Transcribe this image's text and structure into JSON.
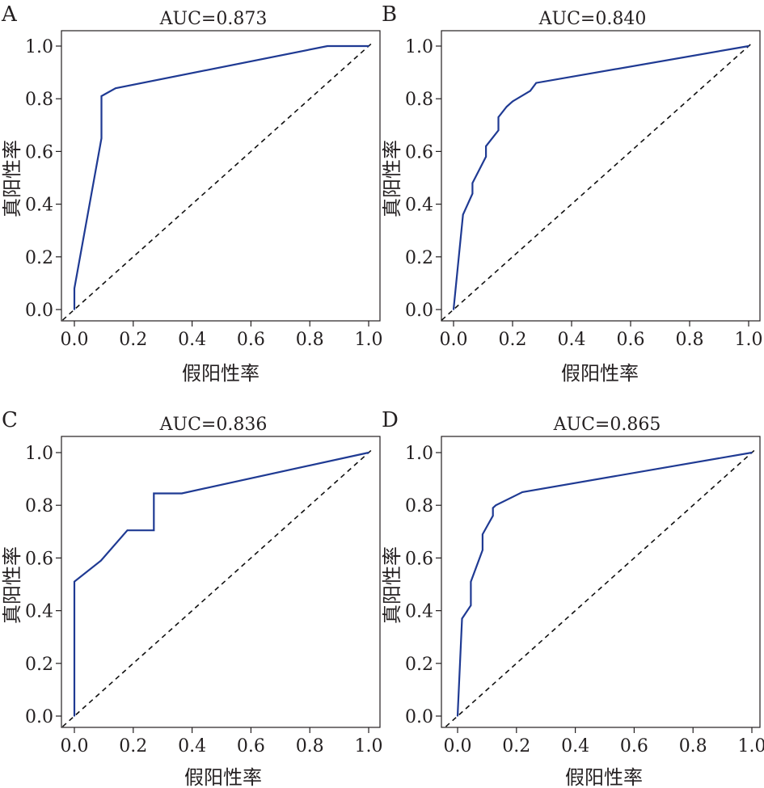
{
  "chart_data": [
    {
      "panel": "A",
      "type": "line",
      "title": "AUC=0.873",
      "xlabel": "假阳性率",
      "ylabel": "真阳性率",
      "xlim": [
        0,
        1
      ],
      "ylim": [
        0,
        1
      ],
      "xticks": [
        "0.0",
        "0.2",
        "0.4",
        "0.6",
        "0.8",
        "1.0"
      ],
      "yticks": [
        "0.0",
        "0.2",
        "0.4",
        "0.6",
        "0.8",
        "1.0"
      ],
      "grid": false,
      "diagonal": true,
      "series": [
        {
          "color": "#1f3a93",
          "x": [
            0.0,
            0.0,
            0.092,
            0.092,
            0.14,
            0.86,
            1.0
          ],
          "y": [
            0.0,
            0.08,
            0.65,
            0.81,
            0.84,
            1.0,
            1.0
          ]
        }
      ]
    },
    {
      "panel": "B",
      "type": "line",
      "title": "AUC=0.840",
      "xlabel": "假阳性率",
      "ylabel": "真阳性率",
      "xlim": [
        0,
        1
      ],
      "ylim": [
        0,
        1
      ],
      "xticks": [
        "0.0",
        "0.2",
        "0.4",
        "0.6",
        "0.8",
        "1.0"
      ],
      "yticks": [
        "0.0",
        "0.2",
        "0.4",
        "0.6",
        "0.8",
        "1.0"
      ],
      "grid": false,
      "diagonal": true,
      "series": [
        {
          "color": "#1f3a93",
          "x": [
            0.0,
            0.032,
            0.064,
            0.064,
            0.11,
            0.11,
            0.152,
            0.152,
            0.18,
            0.2,
            0.26,
            0.28,
            1.0
          ],
          "y": [
            0.0,
            0.36,
            0.44,
            0.48,
            0.58,
            0.62,
            0.68,
            0.73,
            0.77,
            0.79,
            0.83,
            0.86,
            1.0
          ]
        }
      ]
    },
    {
      "panel": "C",
      "type": "line",
      "title": "AUC=0.836",
      "xlabel": "假阳性率",
      "ylabel": "真阳性率",
      "xlim": [
        0,
        1
      ],
      "ylim": [
        0,
        1
      ],
      "xticks": [
        "0.0",
        "0.2",
        "0.4",
        "0.6",
        "0.8",
        "1.0"
      ],
      "yticks": [
        "0.0",
        "0.2",
        "0.4",
        "0.6",
        "0.8",
        "1.0"
      ],
      "grid": false,
      "diagonal": true,
      "series": [
        {
          "color": "#1f3a93",
          "x": [
            0.0,
            0.0,
            0.09,
            0.18,
            0.27,
            0.27,
            0.365,
            1.0
          ],
          "y": [
            0.0,
            0.51,
            0.59,
            0.705,
            0.705,
            0.845,
            0.845,
            1.0
          ]
        }
      ]
    },
    {
      "panel": "D",
      "type": "line",
      "title": "AUC=0.865",
      "xlabel": "假阳性率",
      "ylabel": "真阳性率",
      "xlim": [
        0,
        1
      ],
      "ylim": [
        0,
        1
      ],
      "xticks": [
        "0.0",
        "0.2",
        "0.4",
        "0.6",
        "0.8",
        "1.0"
      ],
      "yticks": [
        "0.0",
        "0.2",
        "0.4",
        "0.6",
        "0.8",
        "1.0"
      ],
      "grid": false,
      "diagonal": true,
      "series": [
        {
          "color": "#1f3a93",
          "x": [
            0.0,
            0.015,
            0.045,
            0.045,
            0.075,
            0.085,
            0.085,
            0.105,
            0.12,
            0.12,
            0.13,
            0.22,
            1.0
          ],
          "y": [
            0.0,
            0.37,
            0.42,
            0.51,
            0.6,
            0.63,
            0.69,
            0.73,
            0.76,
            0.79,
            0.8,
            0.85,
            1.0
          ]
        }
      ]
    }
  ]
}
